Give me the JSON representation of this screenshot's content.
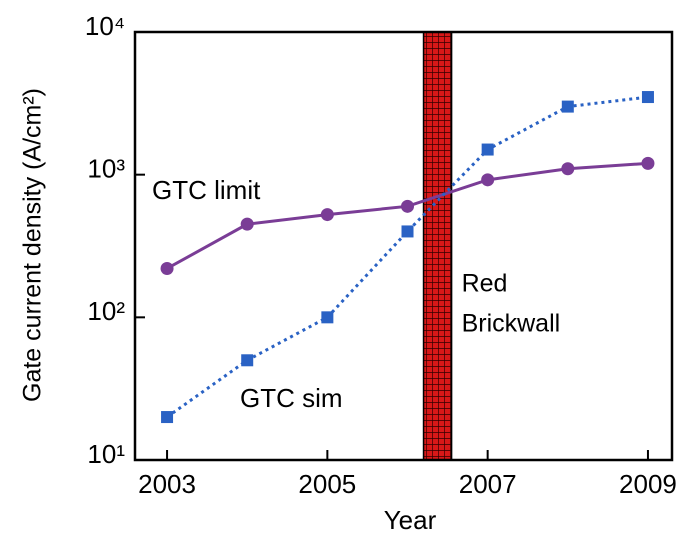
{
  "chart_data": {
    "type": "line",
    "x_label": "Year",
    "y_label": "Gate current density (A/cm²)",
    "x": [
      2003,
      2004,
      2005,
      2006,
      2007,
      2008,
      2009
    ],
    "series": [
      {
        "name": "GTC limit",
        "color": "#7a3d96",
        "style": "solid",
        "marker": "circle",
        "values": [
          220,
          450,
          525,
          600,
          920,
          1100,
          1200
        ]
      },
      {
        "name": "GTC sim",
        "color": "#2a62c4",
        "style": "dotted",
        "marker": "square",
        "values": [
          20,
          50,
          100,
          400,
          1500,
          3000,
          3500
        ]
      }
    ],
    "xlim": [
      2002.6,
      2009.3
    ],
    "xticks": [
      2003,
      2005,
      2007,
      2009
    ],
    "ylim": [
      10,
      10000
    ],
    "yticks": [
      {
        "value": 10,
        "label": "10¹"
      },
      {
        "value": 100,
        "label": "10²"
      },
      {
        "value": 1000,
        "label": "10³"
      },
      {
        "value": 10000,
        "label": "10⁴"
      }
    ],
    "log_y": true,
    "highlight": {
      "x": [
        2006.2,
        2006.55
      ],
      "label": [
        "Red",
        "Brickwall"
      ],
      "color": "#e8502a"
    }
  }
}
